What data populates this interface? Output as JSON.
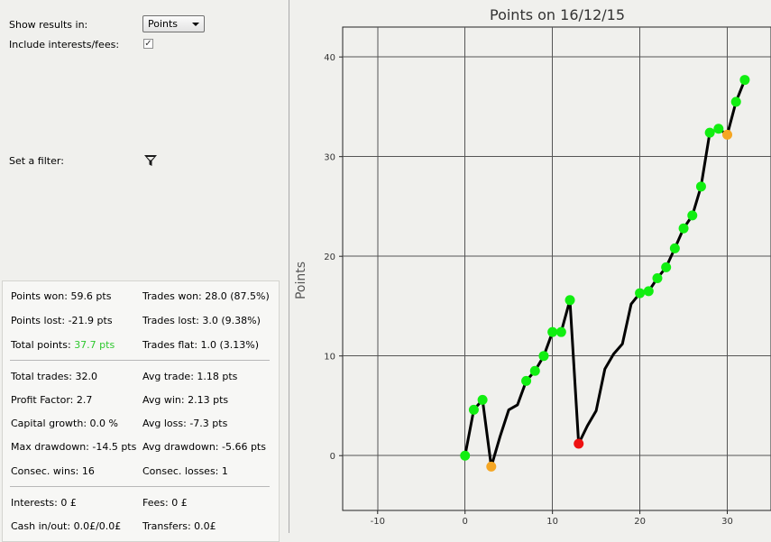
{
  "settings": {
    "show_results_label": "Show results in:",
    "show_results_value": "Points",
    "include_fees_label": "Include interests/fees:",
    "include_fees_checked": true,
    "filter_label": "Set a filter:"
  },
  "stats": {
    "points_won": "Points won: 59.6 pts",
    "trades_won": "Trades won: 28.0 (87.5%)",
    "points_lost": "Points lost: -21.9 pts",
    "trades_lost": "Trades lost: 3.0 (9.38%)",
    "total_points_label": "Total points:",
    "total_points_value": "37.7 pts",
    "trades_flat": "Trades flat: 1.0 (3.13%)",
    "total_trades": "Total trades: 32.0",
    "avg_trade": "Avg trade: 1.18 pts",
    "profit_factor": "Profit Factor: 2.7",
    "avg_win": "Avg win: 2.13 pts",
    "capital_growth": "Capital growth: 0.0 %",
    "avg_loss": "Avg loss: -7.3 pts",
    "max_drawdown": "Max drawdown: -14.5 pts",
    "avg_drawdown": "Avg drawdown: -5.66 pts",
    "consec_wins": "Consec. wins: 16",
    "consec_losses": "Consec. losses: 1",
    "interests": "Interests: 0 £",
    "fees": "Fees: 0 £",
    "cash_in_out": "Cash in/out: 0.0£/0.0£",
    "transfers": "Transfers: 0.0£"
  },
  "chart_data": {
    "type": "line",
    "title": "Points on 16/12/15",
    "xlabel": "",
    "ylabel": "Points",
    "xlim": [
      -14,
      35
    ],
    "ylim": [
      -5.5,
      43
    ],
    "xticks": [
      "-10",
      "0",
      "10",
      "20",
      "30"
    ],
    "yticks": [
      "0",
      "10",
      "20",
      "30",
      "40"
    ],
    "xtick_values": [
      -10,
      0,
      10,
      20,
      30
    ],
    "ytick_values": [
      0,
      10,
      20,
      30,
      40
    ],
    "grid": true,
    "colors": {
      "line": "#000000",
      "win": "#11ee11",
      "flat": "#f5a623",
      "loss": "#ee1111"
    },
    "line_points": [
      [
        0,
        0
      ],
      [
        1,
        4.6
      ],
      [
        2,
        5.6
      ],
      [
        3,
        -1.1
      ],
      [
        4,
        1.9
      ],
      [
        5,
        4.6
      ],
      [
        6,
        5.1
      ],
      [
        7,
        7.5
      ],
      [
        8,
        8.5
      ],
      [
        9,
        10.0
      ],
      [
        10,
        12.4
      ],
      [
        11,
        12.4
      ],
      [
        12,
        15.6
      ],
      [
        13,
        1.2
      ],
      [
        14,
        3.0
      ],
      [
        15,
        4.5
      ],
      [
        16,
        8.7
      ],
      [
        17,
        10.2
      ],
      [
        18,
        11.2
      ],
      [
        19,
        15.2
      ],
      [
        20,
        16.3
      ],
      [
        21,
        16.5
      ],
      [
        22,
        17.8
      ],
      [
        23,
        18.9
      ],
      [
        24,
        20.8
      ],
      [
        25,
        22.8
      ],
      [
        26,
        24.1
      ],
      [
        27,
        27.0
      ],
      [
        28,
        32.4
      ],
      [
        29,
        32.8
      ],
      [
        30,
        32.2
      ],
      [
        31,
        35.5
      ],
      [
        32,
        37.7
      ]
    ],
    "markers": [
      {
        "x": 0,
        "y": 0,
        "type": "win"
      },
      {
        "x": 1,
        "y": 4.6,
        "type": "win"
      },
      {
        "x": 2,
        "y": 5.6,
        "type": "win"
      },
      {
        "x": 3,
        "y": -1.1,
        "type": "flat"
      },
      {
        "x": 7,
        "y": 7.5,
        "type": "win"
      },
      {
        "x": 8,
        "y": 8.5,
        "type": "win"
      },
      {
        "x": 9,
        "y": 10.0,
        "type": "win"
      },
      {
        "x": 10,
        "y": 12.4,
        "type": "win"
      },
      {
        "x": 11,
        "y": 12.4,
        "type": "win"
      },
      {
        "x": 12,
        "y": 15.6,
        "type": "win"
      },
      {
        "x": 13,
        "y": 1.2,
        "type": "loss"
      },
      {
        "x": 20,
        "y": 16.3,
        "type": "win"
      },
      {
        "x": 21,
        "y": 16.5,
        "type": "win"
      },
      {
        "x": 22,
        "y": 17.8,
        "type": "win"
      },
      {
        "x": 23,
        "y": 18.9,
        "type": "win"
      },
      {
        "x": 24,
        "y": 20.8,
        "type": "win"
      },
      {
        "x": 25,
        "y": 22.8,
        "type": "win"
      },
      {
        "x": 26,
        "y": 24.1,
        "type": "win"
      },
      {
        "x": 27,
        "y": 27.0,
        "type": "win"
      },
      {
        "x": 28,
        "y": 32.4,
        "type": "win"
      },
      {
        "x": 29,
        "y": 32.8,
        "type": "win"
      },
      {
        "x": 30,
        "y": 32.2,
        "type": "flat"
      },
      {
        "x": 31,
        "y": 35.5,
        "type": "win"
      },
      {
        "x": 32,
        "y": 37.7,
        "type": "win"
      }
    ]
  }
}
